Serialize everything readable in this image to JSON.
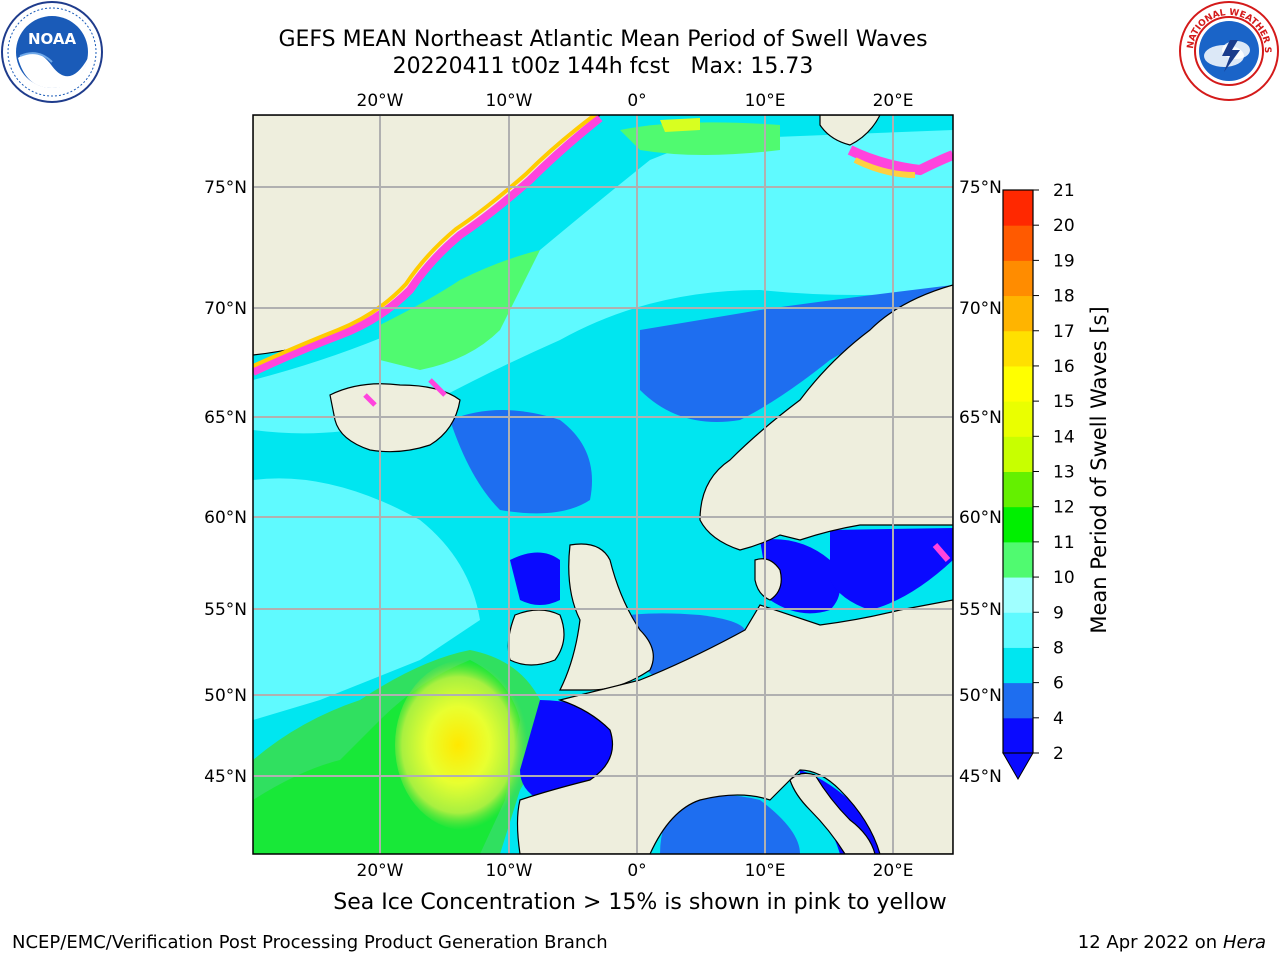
{
  "title": {
    "line1": "GEFS MEAN Northeast Atlantic Mean Period of Swell Waves",
    "line2": "20220411 t00z 144h fcst   Max: 15.73"
  },
  "logos": {
    "left": {
      "name": "noaa-logo",
      "text": "NOAA",
      "ring_text": "NATIONAL OCEANIC AND ATMOSPHERIC ADMINISTRATION · U.S. DEPARTMENT OF COMMERCE"
    },
    "right": {
      "name": "nws-logo",
      "ring_text": "NATIONAL WEATHER SERVICE"
    }
  },
  "map": {
    "projection": "polar stereographic (Northeast Atlantic)",
    "land_color": "#eeeedd",
    "graticule_color": "#b0b0b0",
    "lon_ticks_top": [
      "20°W",
      "10°W",
      "0°",
      "10°E",
      "20°E"
    ],
    "lon_ticks_bottom": [
      "20°W",
      "10°W",
      "0°",
      "10°E",
      "20°E"
    ],
    "lat_ticks_left": [
      "75°N",
      "70°N",
      "65°N",
      "60°N",
      "55°N",
      "50°N",
      "45°N"
    ],
    "lat_ticks_right": [
      "75°N",
      "70°N",
      "65°N",
      "60°N",
      "55°N",
      "50°N",
      "45°N"
    ]
  },
  "colorbar": {
    "label": "Mean Period of Swell Waves [s]",
    "ticks": [
      "2",
      "4",
      "6",
      "8",
      "9",
      "10",
      "11",
      "12",
      "13",
      "14",
      "15",
      "16",
      "17",
      "18",
      "19",
      "20",
      "21"
    ],
    "colors": [
      "#0a0aff",
      "#1e6ef0",
      "#00e6f0",
      "#5ffaff",
      "#a0ffff",
      "#50fa70",
      "#00f000",
      "#64f000",
      "#c8ff00",
      "#eaff00",
      "#ffff00",
      "#ffe000",
      "#ffb400",
      "#ff8c00",
      "#ff5a00",
      "#ff2800"
    ],
    "under_color": "#0a0aff",
    "extend": "min"
  },
  "caption": "Sea Ice Concentration > 15% is shown in pink to yellow",
  "footer": {
    "left": "NCEP/EMC/Verification Post Processing Product Generation Branch",
    "right_date": "12 Apr 2022 on ",
    "right_host": "Hera"
  }
}
